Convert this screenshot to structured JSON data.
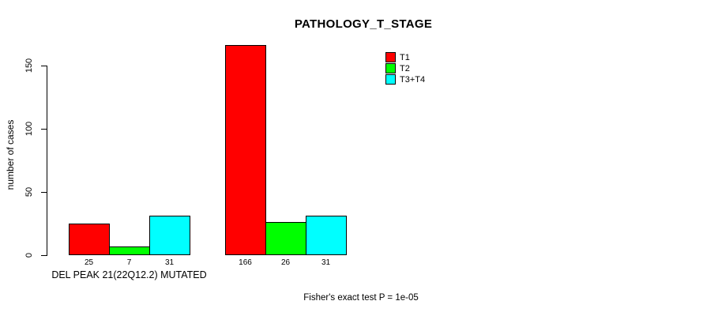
{
  "title": "PATHOLOGY_T_STAGE",
  "chart_data": {
    "type": "bar",
    "title": "PATHOLOGY_T_STAGE",
    "ylabel": "number of cases",
    "xlabel": "",
    "yticks": [
      0,
      50,
      100,
      150
    ],
    "ylim": [
      0,
      166
    ],
    "grid": false,
    "legend_position": "top-right",
    "bar_border_color": "#000000",
    "series": [
      {
        "name": "T1",
        "color": "#ff0000"
      },
      {
        "name": "T2",
        "color": "#00ff00"
      },
      {
        "name": "T3+T4",
        "color": "#00ffff"
      }
    ],
    "groups": [
      {
        "label": "DEL PEAK 21(22Q12.2) MUTATED",
        "values": [
          25,
          7,
          31
        ]
      },
      {
        "label": "",
        "values": [
          166,
          26,
          31
        ]
      }
    ],
    "footnote": "Fisher's exact test P = 1e-05"
  }
}
